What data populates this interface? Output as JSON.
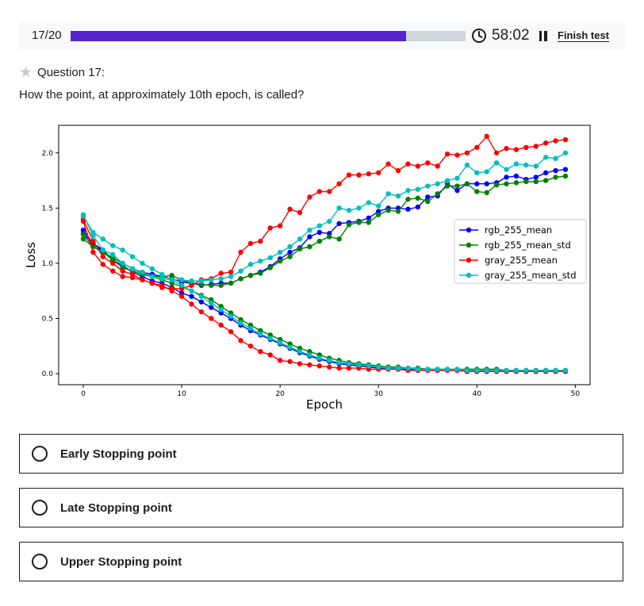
{
  "header": {
    "counter": "17/20",
    "progress_fraction": 0.85,
    "timer": "58:02",
    "finish_label": "Finish test",
    "icons": [
      "clock-icon",
      "pause-icon",
      "star-icon"
    ]
  },
  "question": {
    "label": "Question 17:",
    "prompt": "How the point, at approximately 10th epoch, is called?"
  },
  "options": [
    {
      "label": "Early Stopping point"
    },
    {
      "label": "Late Stopping point"
    },
    {
      "label": "Upper Stopping point"
    }
  ],
  "colors": {
    "accent": "#5624d0",
    "track": "#d1d7dc"
  },
  "chart_data": {
    "type": "line",
    "xlabel": "Epoch",
    "ylabel": "Loss",
    "xlim": [
      -2.5,
      51.5
    ],
    "ylim": [
      -0.1,
      2.25
    ],
    "xticks": [
      0,
      10,
      20,
      30,
      40,
      50
    ],
    "yticks": [
      0.0,
      0.5,
      1.0,
      1.5,
      2.0
    ],
    "ytick_labels": [
      "0.0",
      "0.5",
      "1.0",
      "1.5",
      "2.0"
    ],
    "grid": false,
    "legend_position": "center-right",
    "series": [
      {
        "name": "rgb_255_mean",
        "color": "#0000ff",
        "group": "train",
        "values": [
          1.27,
          1.18,
          1.12,
          1.03,
          0.98,
          0.92,
          0.88,
          0.84,
          0.82,
          0.78,
          0.73,
          0.7,
          0.65,
          0.6,
          0.55,
          0.5,
          0.44,
          0.39,
          0.35,
          0.31,
          0.27,
          0.23,
          0.19,
          0.16,
          0.13,
          0.11,
          0.09,
          0.08,
          0.07,
          0.06,
          0.05,
          0.05,
          0.04,
          0.04,
          0.03,
          0.03,
          0.03,
          0.03,
          0.03,
          0.02,
          0.02,
          0.02,
          0.02,
          0.02,
          0.02,
          0.02,
          0.02,
          0.02,
          0.02,
          0.02
        ]
      },
      {
        "name": "rgb_255_mean",
        "color": "#0000ff",
        "group": "val",
        "values": [
          1.3,
          1.18,
          1.1,
          1.05,
          1.0,
          0.95,
          0.92,
          0.9,
          0.88,
          0.86,
          0.83,
          0.82,
          0.8,
          0.81,
          0.82,
          0.82,
          0.86,
          0.89,
          0.92,
          0.97,
          1.04,
          1.1,
          1.14,
          1.24,
          1.28,
          1.27,
          1.36,
          1.37,
          1.38,
          1.41,
          1.47,
          1.5,
          1.5,
          1.49,
          1.51,
          1.6,
          1.61,
          1.72,
          1.66,
          1.72,
          1.72,
          1.72,
          1.73,
          1.78,
          1.79,
          1.76,
          1.78,
          1.82,
          1.84,
          1.85
        ]
      },
      {
        "name": "rgb_255_mean_std",
        "color": "#008000",
        "group": "train",
        "values": [
          1.22,
          1.15,
          1.1,
          1.05,
          1.0,
          0.95,
          0.91,
          0.88,
          0.85,
          0.82,
          0.79,
          0.75,
          0.71,
          0.67,
          0.61,
          0.55,
          0.49,
          0.44,
          0.39,
          0.35,
          0.31,
          0.27,
          0.23,
          0.2,
          0.17,
          0.14,
          0.12,
          0.1,
          0.09,
          0.08,
          0.07,
          0.06,
          0.06,
          0.05,
          0.05,
          0.04,
          0.04,
          0.04,
          0.04,
          0.04,
          0.04,
          0.04,
          0.04,
          0.03,
          0.03,
          0.03,
          0.03,
          0.03,
          0.03,
          0.03
        ]
      },
      {
        "name": "rgb_255_mean_std",
        "color": "#008000",
        "group": "val",
        "values": [
          1.26,
          1.15,
          1.1,
          1.03,
          0.96,
          0.93,
          0.9,
          0.88,
          0.88,
          0.89,
          0.85,
          0.82,
          0.81,
          0.8,
          0.8,
          0.82,
          0.86,
          0.89,
          0.91,
          0.96,
          1.02,
          1.06,
          1.13,
          1.15,
          1.2,
          1.24,
          1.22,
          1.35,
          1.37,
          1.37,
          1.44,
          1.48,
          1.47,
          1.58,
          1.59,
          1.56,
          1.63,
          1.7,
          1.7,
          1.72,
          1.65,
          1.64,
          1.71,
          1.72,
          1.73,
          1.74,
          1.74,
          1.75,
          1.78,
          1.79
        ]
      },
      {
        "name": "gray_255_mean",
        "color": "#ff0000",
        "group": "train",
        "values": [
          1.38,
          1.1,
          0.99,
          0.93,
          0.88,
          0.87,
          0.85,
          0.82,
          0.8,
          0.75,
          0.7,
          0.63,
          0.56,
          0.5,
          0.44,
          0.38,
          0.3,
          0.25,
          0.2,
          0.17,
          0.12,
          0.11,
          0.09,
          0.08,
          0.07,
          0.06,
          0.05,
          0.05,
          0.05,
          0.04,
          0.04,
          0.04,
          0.04,
          0.03,
          0.03,
          0.03,
          0.03,
          0.03,
          0.03,
          0.02,
          0.02,
          0.02,
          0.02,
          0.02,
          0.02,
          0.02,
          0.02,
          0.02,
          0.02,
          0.02
        ]
      },
      {
        "name": "gray_255_mean",
        "color": "#ff0000",
        "group": "val",
        "values": [
          1.4,
          1.2,
          1.06,
          1.0,
          0.93,
          0.9,
          0.85,
          0.82,
          0.78,
          0.77,
          0.77,
          0.8,
          0.85,
          0.86,
          0.91,
          0.92,
          1.1,
          1.18,
          1.2,
          1.32,
          1.34,
          1.49,
          1.46,
          1.6,
          1.65,
          1.65,
          1.72,
          1.8,
          1.8,
          1.81,
          1.82,
          1.9,
          1.84,
          1.9,
          1.88,
          1.91,
          1.88,
          1.99,
          1.98,
          2.0,
          2.05,
          2.15,
          2.0,
          2.04,
          2.03,
          2.05,
          2.06,
          2.09,
          2.11,
          2.12
        ]
      },
      {
        "name": "gray_255_mean_std",
        "color": "#00bfbf",
        "group": "train",
        "values": [
          1.43,
          1.28,
          1.22,
          1.16,
          1.12,
          1.06,
          1.0,
          0.95,
          0.9,
          0.85,
          0.8,
          0.75,
          0.7,
          0.64,
          0.58,
          0.52,
          0.46,
          0.41,
          0.36,
          0.32,
          0.28,
          0.24,
          0.2,
          0.17,
          0.14,
          0.12,
          0.1,
          0.09,
          0.08,
          0.07,
          0.06,
          0.05,
          0.05,
          0.05,
          0.04,
          0.04,
          0.04,
          0.04,
          0.04,
          0.03,
          0.03,
          0.03,
          0.03,
          0.03,
          0.03,
          0.03,
          0.03,
          0.03,
          0.03,
          0.03
        ]
      },
      {
        "name": "gray_255_mean_std",
        "color": "#00bfbf",
        "group": "val",
        "values": [
          1.44,
          1.25,
          1.12,
          1.08,
          1.0,
          0.95,
          0.92,
          0.88,
          0.86,
          0.85,
          0.85,
          0.84,
          0.84,
          0.85,
          0.86,
          0.88,
          0.93,
          0.99,
          1.02,
          1.05,
          1.1,
          1.15,
          1.22,
          1.3,
          1.34,
          1.38,
          1.5,
          1.48,
          1.5,
          1.55,
          1.52,
          1.63,
          1.61,
          1.66,
          1.67,
          1.7,
          1.72,
          1.75,
          1.77,
          1.89,
          1.82,
          1.83,
          1.91,
          1.85,
          1.9,
          1.89,
          1.88,
          1.96,
          1.95,
          2.0
        ]
      }
    ],
    "legend": [
      "rgb_255_mean",
      "rgb_255_mean_std",
      "gray_255_mean",
      "gray_255_mean_std"
    ]
  }
}
